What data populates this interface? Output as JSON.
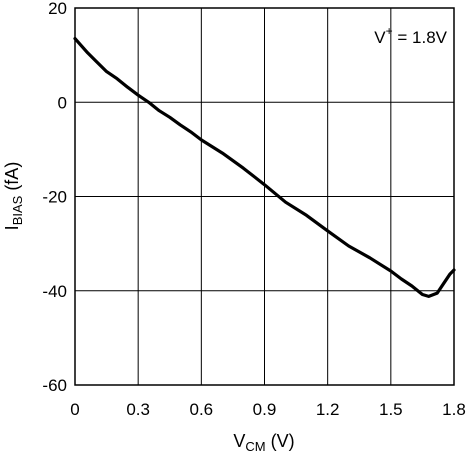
{
  "chart_data": {
    "type": "line",
    "xlabel": {
      "main": "V",
      "sub": "CM",
      "rest": " (V)"
    },
    "ylabel": {
      "main": "I",
      "sub": "BIAS",
      "rest": " (fA)"
    },
    "xlim": [
      0,
      1.8
    ],
    "ylim": [
      -60,
      20
    ],
    "x_ticks": [
      0,
      0.3,
      0.6,
      0.9,
      1.2,
      1.5,
      1.8
    ],
    "x_tick_labels": [
      "0",
      "0.3",
      "0.6",
      "0.9",
      "1.2",
      "1.5",
      "1.8"
    ],
    "y_ticks": [
      20,
      0,
      -20,
      -40,
      -60
    ],
    "y_tick_labels": [
      "20",
      "0",
      "-20",
      "-40",
      "-60"
    ],
    "grid": true,
    "annotation": {
      "base": "V",
      "sup": "+",
      "rest": " = 1.8V"
    },
    "series": [
      {
        "color": "#000000",
        "x": [
          0,
          0.03,
          0.06,
          0.1,
          0.15,
          0.2,
          0.25,
          0.3,
          0.35,
          0.4,
          0.45,
          0.5,
          0.55,
          0.6,
          0.7,
          0.8,
          0.9,
          1.0,
          1.1,
          1.2,
          1.3,
          1.4,
          1.5,
          1.55,
          1.6,
          1.65,
          1.68,
          1.72,
          1.75,
          1.78,
          1.8
        ],
        "y": [
          13.5,
          12,
          10.5,
          8.7,
          6.5,
          5,
          3.2,
          1.5,
          0,
          -1.8,
          -3.2,
          -4.8,
          -6.3,
          -8,
          -10.8,
          -14,
          -17.5,
          -21.2,
          -24,
          -27.3,
          -30.5,
          -33,
          -35.8,
          -37.5,
          -39,
          -40.8,
          -41.2,
          -40.5,
          -38.5,
          -36.5,
          -35.6
        ]
      }
    ]
  }
}
